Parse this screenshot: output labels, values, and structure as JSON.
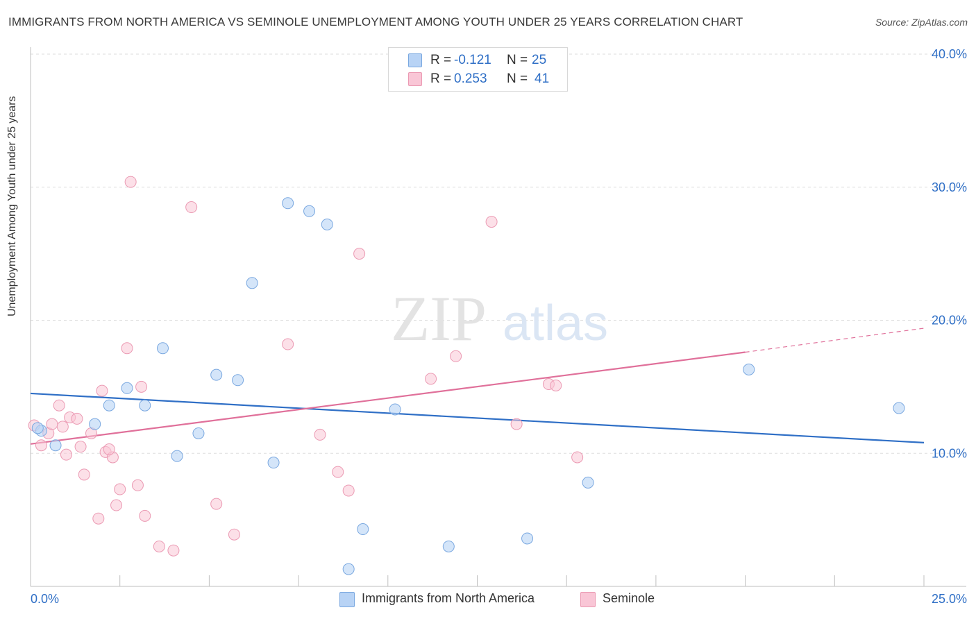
{
  "title": "IMMIGRANTS FROM NORTH AMERICA VS SEMINOLE UNEMPLOYMENT AMONG YOUTH UNDER 25 YEARS CORRELATION CHART",
  "source": "Source: ZipAtlas.com",
  "watermark": {
    "zip": "ZIP",
    "atlas": "atlas"
  },
  "legend": {
    "rows": [
      {
        "r_label": "R =",
        "r_value": "-0.121",
        "n_label": "N =",
        "n_value": "25"
      },
      {
        "r_label": "R =",
        "r_value": "0.253",
        "n_label": "N =",
        "n_value": "41"
      }
    ]
  },
  "colors": {
    "blue_fill": "#b8d3f5",
    "blue_stroke": "#7aa8e0",
    "blue_line": "#2f6fc6",
    "pink_fill": "#f9c6d6",
    "pink_stroke": "#eb9ab3",
    "pink_line": "#e0709a",
    "axis_label": "#2f6fc6",
    "grid": "#dddddd"
  },
  "chart_data": {
    "type": "scatter",
    "title": "IMMIGRANTS FROM NORTH AMERICA VS SEMINOLE UNEMPLOYMENT AMONG YOUTH UNDER 25 YEARS CORRELATION CHART",
    "xlabel": "",
    "ylabel": "Unemployment Among Youth under 25 years",
    "xlim": [
      0,
      25
    ],
    "ylim": [
      0,
      40
    ],
    "x_tick_labels": [
      "0.0%",
      "25.0%"
    ],
    "y_ticks": [
      10,
      20,
      30,
      40
    ],
    "y_tick_labels": [
      "10.0%",
      "20.0%",
      "30.0%",
      "40.0%"
    ],
    "grid": true,
    "legend_position": "top-center",
    "series": [
      {
        "name": "Immigrants from North America",
        "color": "#b8d3f5",
        "trend": {
          "x0": 0,
          "y0": 14.5,
          "x1": 25,
          "y1": 10.8
        },
        "points": [
          [
            0.3,
            11.7
          ],
          [
            0.7,
            10.6
          ],
          [
            1.8,
            12.2
          ],
          [
            2.2,
            13.6
          ],
          [
            2.7,
            14.9
          ],
          [
            3.2,
            13.6
          ],
          [
            3.7,
            17.9
          ],
          [
            4.1,
            9.8
          ],
          [
            4.7,
            11.5
          ],
          [
            5.2,
            15.9
          ],
          [
            5.8,
            15.5
          ],
          [
            6.2,
            22.8
          ],
          [
            6.8,
            9.3
          ],
          [
            7.2,
            28.8
          ],
          [
            7.8,
            28.2
          ],
          [
            8.3,
            27.2
          ],
          [
            8.9,
            1.3
          ],
          [
            9.3,
            4.3
          ],
          [
            10.2,
            13.3
          ],
          [
            11.7,
            3.0
          ],
          [
            13.9,
            3.6
          ],
          [
            15.6,
            7.8
          ],
          [
            20.1,
            16.3
          ],
          [
            24.3,
            13.4
          ],
          [
            0.2,
            11.9
          ]
        ]
      },
      {
        "name": "Seminole",
        "color": "#f9c6d6",
        "trend": {
          "x0": 0,
          "y0": 10.7,
          "x1": 20,
          "y1": 17.6
        },
        "trend_dashed_to": {
          "x": 25,
          "y": 19.4
        },
        "points": [
          [
            0.1,
            12.1
          ],
          [
            0.3,
            10.6
          ],
          [
            0.5,
            11.5
          ],
          [
            0.6,
            12.2
          ],
          [
            0.8,
            13.6
          ],
          [
            1.0,
            9.9
          ],
          [
            1.1,
            12.7
          ],
          [
            1.4,
            10.5
          ],
          [
            1.5,
            8.4
          ],
          [
            1.7,
            11.5
          ],
          [
            1.9,
            5.1
          ],
          [
            2.0,
            14.7
          ],
          [
            2.1,
            10.1
          ],
          [
            2.3,
            9.7
          ],
          [
            2.4,
            6.1
          ],
          [
            2.5,
            7.3
          ],
          [
            2.7,
            17.9
          ],
          [
            2.8,
            30.4
          ],
          [
            3.0,
            7.6
          ],
          [
            3.1,
            15.0
          ],
          [
            3.2,
            5.3
          ],
          [
            3.6,
            3.0
          ],
          [
            4.0,
            2.7
          ],
          [
            4.5,
            28.5
          ],
          [
            5.2,
            6.2
          ],
          [
            5.7,
            3.9
          ],
          [
            7.2,
            18.2
          ],
          [
            8.1,
            11.4
          ],
          [
            8.6,
            8.6
          ],
          [
            8.9,
            7.2
          ],
          [
            9.2,
            25.0
          ],
          [
            11.2,
            15.6
          ],
          [
            11.9,
            17.3
          ],
          [
            12.9,
            27.4
          ],
          [
            13.6,
            12.2
          ],
          [
            14.5,
            15.2
          ],
          [
            14.7,
            15.1
          ],
          [
            15.3,
            9.7
          ],
          [
            0.9,
            12.0
          ],
          [
            1.3,
            12.6
          ],
          [
            2.2,
            10.3
          ]
        ]
      }
    ]
  },
  "bottom_legend": [
    "Immigrants from North America",
    "Seminole"
  ]
}
